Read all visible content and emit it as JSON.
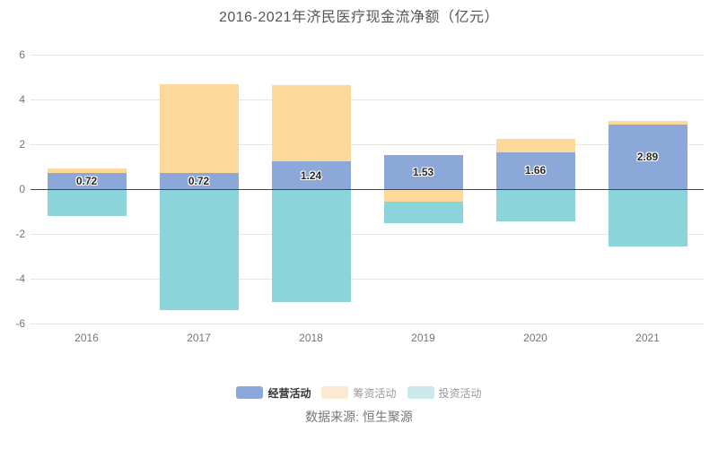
{
  "title": "2016-2021年济民医疗现金流净额（亿元）",
  "source": "数据来源: 恒生聚源",
  "colors": {
    "operating": "#8CA8D8",
    "financing": "#FCD89A",
    "investing": "#8AD4DA",
    "grid_line": "#DDE7F2",
    "zero_line": "#454545",
    "axis_text": "#757575",
    "title_text": "#565656",
    "legend_active_text": "#333333",
    "legend_inactive_text": "#999999"
  },
  "legend": {
    "items": [
      {
        "label": "经营活动",
        "swatch": "#8CA8D8",
        "active": true
      },
      {
        "label": "筹资活动",
        "swatch": "#FAEBD0",
        "active": false
      },
      {
        "label": "投资活动",
        "swatch": "#CBE9EC",
        "active": false
      }
    ]
  },
  "chart_data": {
    "type": "bar",
    "stacked": true,
    "title": "2016-2021年济民医疗现金流净额（亿元）",
    "categories": [
      "2016",
      "2017",
      "2018",
      "2019",
      "2020",
      "2021"
    ],
    "series": [
      {
        "name": "经营活动",
        "color": "#8CA8D8",
        "values": [
          0.72,
          0.72,
          1.24,
          1.53,
          1.66,
          2.89
        ],
        "data_labels": [
          "0.72",
          "0.72",
          "1.24",
          "1.53",
          "1.66",
          "2.89"
        ]
      },
      {
        "name": "筹资活动",
        "color": "#FCD89A",
        "values": [
          0.2,
          3.98,
          3.4,
          -0.52,
          0.57,
          0.17
        ]
      },
      {
        "name": "投资活动",
        "color": "#8AD4DA",
        "values": [
          -1.15,
          -5.35,
          -5.0,
          -0.97,
          -1.39,
          -2.53
        ]
      }
    ],
    "ylim": [
      -6,
      6
    ],
    "yticks": [
      6,
      4,
      2,
      0,
      -2,
      -4,
      -6
    ],
    "grid": true,
    "legend_position": "bottom",
    "xlabel": "",
    "ylabel": ""
  }
}
